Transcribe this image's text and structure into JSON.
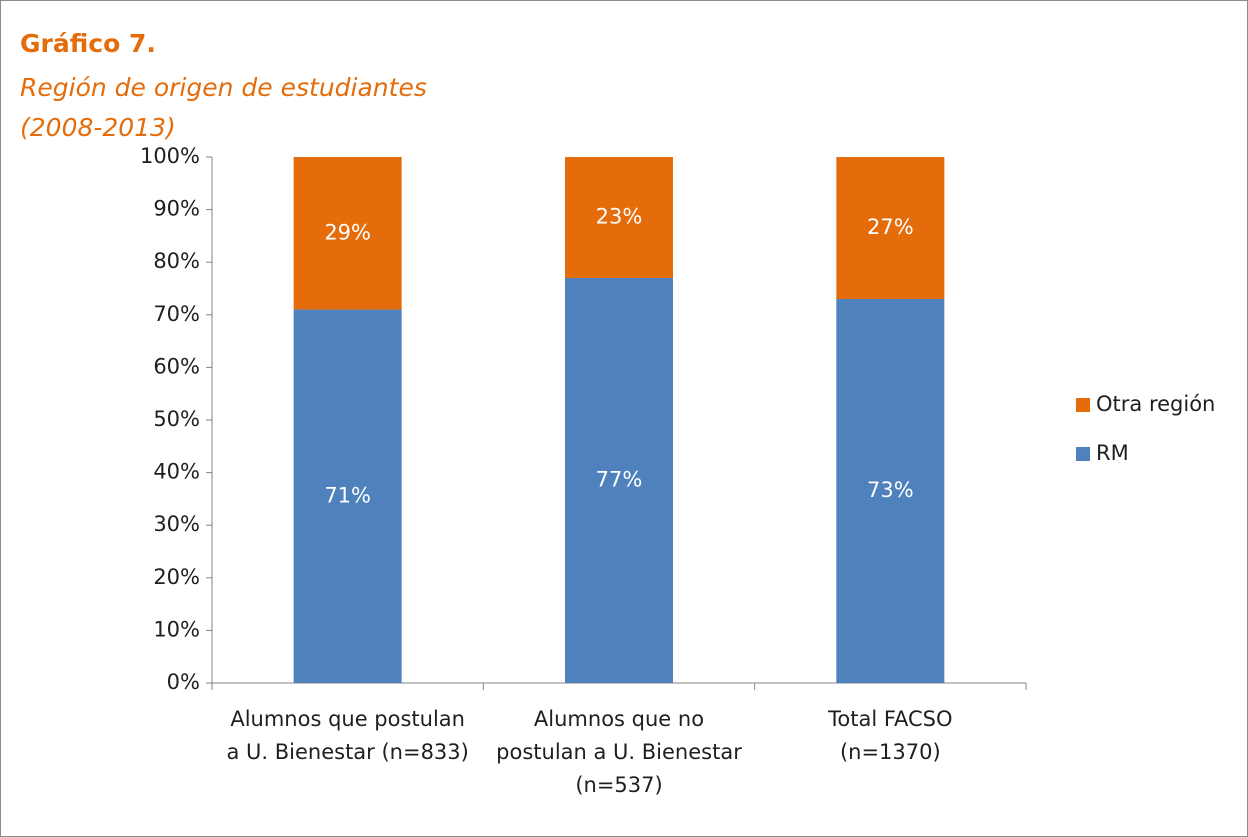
{
  "chart_data": {
    "type": "stacked_bar",
    "title": "Gráfico 7.",
    "subtitle": [
      "Región de origen de estudiantes",
      "(2008-2013)"
    ],
    "categories": [
      [
        "Alumnos que postulan",
        "a U. Bienestar (n=833)"
      ],
      [
        "Alumnos que no",
        "postulan a U. Bienestar",
        "(n=537)"
      ],
      [
        "Total FACSO",
        "(n=1370)"
      ]
    ],
    "series": [
      {
        "name": "RM",
        "color": "#4f81bd",
        "values": [
          71,
          77,
          73
        ],
        "value_labels": [
          "71%",
          "77%",
          "73%"
        ]
      },
      {
        "name": "Otra región",
        "color": "#e46c0a",
        "values": [
          29,
          23,
          27
        ],
        "value_labels": [
          "29%",
          "23%",
          "27%"
        ]
      }
    ],
    "ylim": [
      0,
      100
    ],
    "yticks": [
      {
        "value": 0,
        "label": "0%"
      },
      {
        "value": 10,
        "label": "10%"
      },
      {
        "value": 20,
        "label": "20%"
      },
      {
        "value": 30,
        "label": "30%"
      },
      {
        "value": 40,
        "label": "40%"
      },
      {
        "value": 50,
        "label": "50%"
      },
      {
        "value": 60,
        "label": "60%"
      },
      {
        "value": 70,
        "label": "70%"
      },
      {
        "value": 80,
        "label": "80%"
      },
      {
        "value": 90,
        "label": "90%"
      },
      {
        "value": 100,
        "label": "100%"
      }
    ],
    "legend": "right"
  }
}
